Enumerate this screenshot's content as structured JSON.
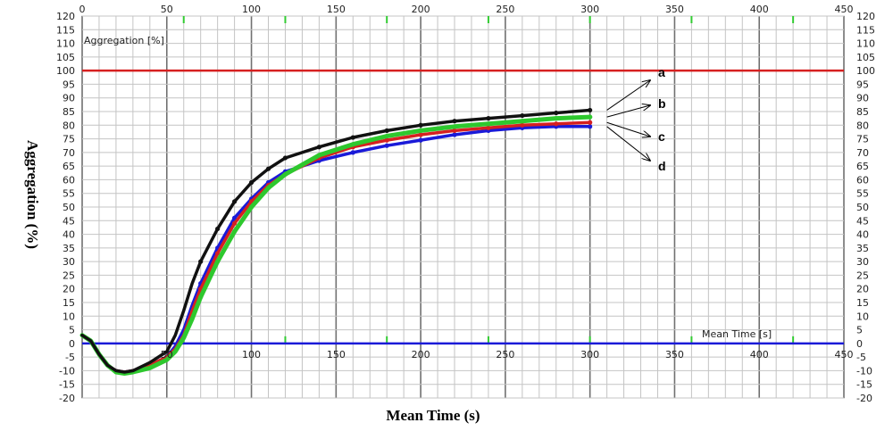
{
  "chart_data": {
    "type": "line",
    "xlabel": "Mean Time (s)",
    "ylabel": "Aggregation (%)",
    "inner_ylabel": "Aggregation [%]",
    "inner_xlabel": "Mean Time [s]",
    "xlim": [
      0,
      450
    ],
    "ylim": [
      -20,
      120
    ],
    "x_ticks": [
      "0",
      "50",
      "100",
      "150",
      "200",
      "250",
      "300",
      "350",
      "400",
      "450"
    ],
    "y_ticks": [
      "-20",
      "-15",
      "-10",
      "-5",
      "0",
      "5",
      "10",
      "15",
      "20",
      "25",
      "30",
      "35",
      "40",
      "45",
      "50",
      "55",
      "60",
      "65",
      "70",
      "75",
      "80",
      "85",
      "90",
      "95",
      "100",
      "105",
      "110",
      "115",
      "120"
    ],
    "reference_lines": [
      {
        "axis": "y",
        "value": 100,
        "color": "#d62020"
      },
      {
        "axis": "y",
        "value": 0,
        "color": "#1a1ad8"
      }
    ],
    "curve_labels": [
      "a",
      "b",
      "c",
      "d"
    ],
    "series": [
      {
        "color": "#111111",
        "x": [
          0,
          5,
          10,
          15,
          20,
          25,
          30,
          40,
          50,
          55,
          60,
          65,
          70,
          80,
          90,
          100,
          110,
          120,
          140,
          160,
          180,
          200,
          220,
          240,
          260,
          280,
          300
        ],
        "y": [
          3,
          1,
          -4,
          -8,
          -10,
          -10.5,
          -10,
          -7,
          -3,
          3,
          12,
          22,
          30,
          42,
          52,
          59,
          64,
          68,
          72,
          75.5,
          78,
          80,
          81.5,
          82.5,
          83.5,
          84.5,
          85.5
        ]
      },
      {
        "color": "#d62020",
        "x": [
          0,
          5,
          10,
          15,
          20,
          25,
          30,
          40,
          50,
          55,
          60,
          65,
          70,
          80,
          90,
          100,
          110,
          120,
          140,
          160,
          180,
          200,
          220,
          240,
          260,
          280,
          300
        ],
        "y": [
          3,
          1,
          -4,
          -8,
          -10,
          -10.5,
          -10,
          -8,
          -5,
          -2,
          3,
          12,
          20,
          33,
          44,
          52,
          58,
          62,
          68,
          72,
          74.5,
          76.5,
          78,
          79,
          80,
          80.5,
          81
        ]
      },
      {
        "color": "#2ec82e",
        "x": [
          0,
          5,
          10,
          15,
          20,
          25,
          30,
          40,
          50,
          55,
          60,
          65,
          70,
          80,
          90,
          100,
          110,
          120,
          140,
          160,
          180,
          200,
          220,
          240,
          260,
          280,
          300
        ],
        "y": [
          3,
          1,
          -4,
          -8,
          -10.5,
          -11,
          -10.5,
          -9,
          -6,
          -3,
          2,
          9,
          17,
          30,
          41,
          50,
          57,
          62,
          69,
          73,
          76,
          78,
          79.5,
          80.5,
          81.5,
          82.5,
          83
        ]
      },
      {
        "color": "#1a1ad8",
        "x": [
          0,
          5,
          10,
          15,
          20,
          25,
          30,
          40,
          50,
          55,
          60,
          65,
          70,
          80,
          90,
          100,
          110,
          120,
          140,
          160,
          180,
          200,
          220,
          240,
          260,
          280,
          300
        ],
        "y": [
          3,
          1,
          -4,
          -8,
          -10,
          -10.5,
          -10,
          -8,
          -5,
          -1,
          5,
          14,
          22,
          35,
          46,
          53,
          59,
          63,
          67,
          70,
          72.5,
          74.5,
          76.5,
          78,
          79,
          79.5,
          79.5
        ]
      }
    ],
    "grid": true
  }
}
